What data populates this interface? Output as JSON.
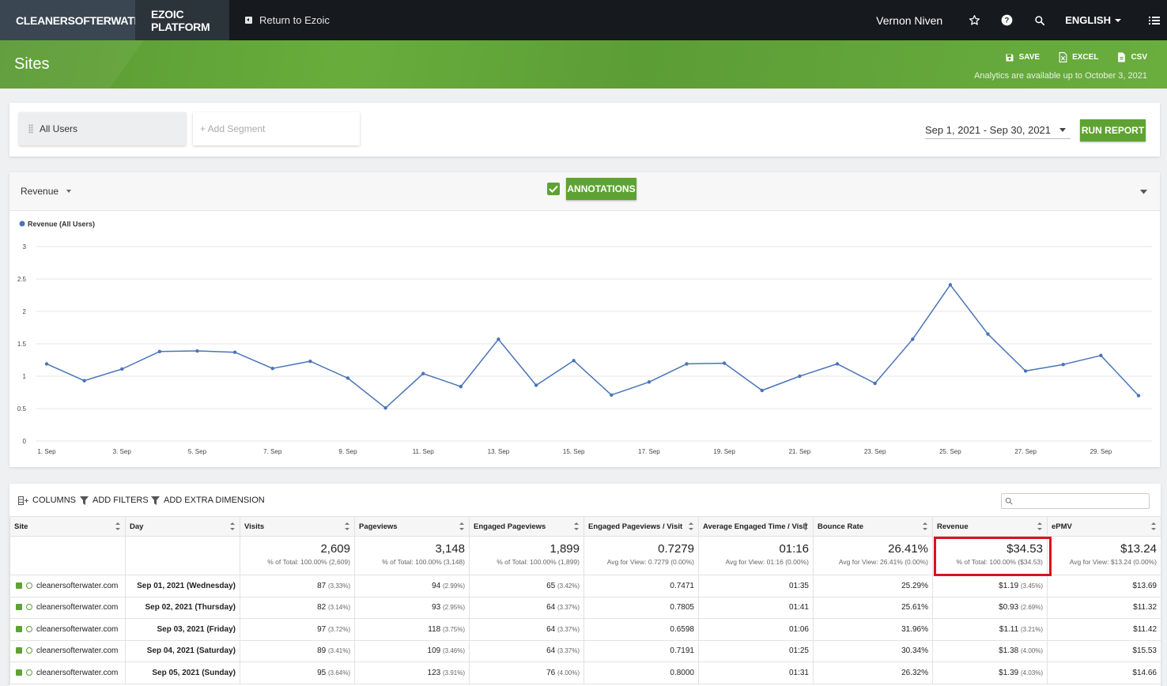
{
  "nav": {
    "site_name": "CLEANERSOFTERWATER.COM",
    "platform": "EZOIC PLATFORM",
    "return_label": "Return to Ezoic",
    "user": "Vernon Niven",
    "language": "ENGLISH"
  },
  "header": {
    "title": "Sites",
    "save": "SAVE",
    "excel": "EXCEL",
    "csv": "CSV",
    "note": "Analytics are available up to October 3, 2021"
  },
  "segments": {
    "all": "All Users",
    "add_placeholder": "+ Add Segment",
    "date_range": "Sep 1, 2021 - Sep 30, 2021",
    "run": "RUN REPORT"
  },
  "chart_controls": {
    "metric": "Revenue",
    "annotations": "ANNOTATIONS"
  },
  "chart_data": {
    "type": "line",
    "series": [
      {
        "name": "Revenue (All Users)",
        "color": "#4a74b8",
        "values": [
          1.19,
          0.93,
          1.11,
          1.38,
          1.39,
          1.37,
          1.12,
          1.23,
          0.97,
          0.51,
          1.04,
          0.84,
          1.57,
          0.86,
          1.24,
          0.71,
          0.91,
          1.19,
          1.2,
          0.78,
          1.0,
          1.19,
          0.89,
          1.57,
          2.41,
          1.65,
          1.08,
          1.18,
          1.32,
          0.7
        ]
      }
    ],
    "x": [
      "1. Sep",
      "2. Sep",
      "3. Sep",
      "4. Sep",
      "5. Sep",
      "6. Sep",
      "7. Sep",
      "8. Sep",
      "9. Sep",
      "10. Sep",
      "11. Sep",
      "12. Sep",
      "13. Sep",
      "14. Sep",
      "15. Sep",
      "16. Sep",
      "17. Sep",
      "18. Sep",
      "19. Sep",
      "20. Sep",
      "21. Sep",
      "22. Sep",
      "23. Sep",
      "24. Sep",
      "25. Sep",
      "26. Sep",
      "27. Sep",
      "28. Sep",
      "29. Sep",
      "30. Sep"
    ],
    "x_tick_labels": [
      "1. Sep",
      "3. Sep",
      "5. Sep",
      "7. Sep",
      "9. Sep",
      "11. Sep",
      "13. Sep",
      "15. Sep",
      "17. Sep",
      "19. Sep",
      "21. Sep",
      "23. Sep",
      "25. Sep",
      "27. Sep",
      "29. Sep"
    ],
    "y_ticks": [
      "0",
      "0.5",
      "1",
      "1.5",
      "2",
      "2.5",
      "3"
    ],
    "ylim": [
      0,
      3
    ],
    "grid": true,
    "legend": "top-left"
  },
  "table": {
    "tools": {
      "columns": "COLUMNS",
      "filters": "ADD FILTERS",
      "dimension": "ADD EXTRA DIMENSION"
    },
    "headers": [
      "Site",
      "Day",
      "Visits",
      "Pageviews",
      "Engaged Pageviews",
      "Engaged Pageviews / Visit",
      "Average Engaged Time / Visit",
      "Bounce Rate",
      "Revenue",
      "ePMV"
    ],
    "totals": [
      {
        "value": "2,609",
        "sub": "% of Total: 100.00% (2,609)"
      },
      {
        "value": "3,148",
        "sub": "% of Total: 100.00% (3,148)"
      },
      {
        "value": "1,899",
        "sub": "% of Total: 100.00% (1,899)"
      },
      {
        "value": "0.7279",
        "sub": "Avg for View: 0.7279 (0.00%)"
      },
      {
        "value": "01:16",
        "sub": "Avg for View: 01:16 (0.00%)"
      },
      {
        "value": "26.41%",
        "sub": "Avg for View: 26.41% (0.00%)"
      },
      {
        "value": "$34.53",
        "sub": "% of Total: 100.00% ($34.53)"
      },
      {
        "value": "$13.24",
        "sub": "Avg for View: $13.24 (0.00%)"
      }
    ],
    "rows": [
      {
        "site": "cleanersofterwater.com",
        "day": "Sep 01, 2021 (Wednesday)",
        "visits": "87",
        "visits_pct": "(3.33%)",
        "pageviews": "94",
        "pageviews_pct": "(2.99%)",
        "engaged": "65",
        "engaged_pct": "(3.42%)",
        "epv": "0.7471",
        "time": "01:35",
        "bounce": "25.29%",
        "revenue": "$1.19",
        "revenue_pct": "(3.45%)",
        "epmv": "$13.69"
      },
      {
        "site": "cleanersofterwater.com",
        "day": "Sep 02, 2021 (Thursday)",
        "visits": "82",
        "visits_pct": "(3.14%)",
        "pageviews": "93",
        "pageviews_pct": "(2.95%)",
        "engaged": "64",
        "engaged_pct": "(3.37%)",
        "epv": "0.7805",
        "time": "01:41",
        "bounce": "25.61%",
        "revenue": "$0.93",
        "revenue_pct": "(2.69%)",
        "epmv": "$11.32"
      },
      {
        "site": "cleanersofterwater.com",
        "day": "Sep 03, 2021 (Friday)",
        "visits": "97",
        "visits_pct": "(3.72%)",
        "pageviews": "118",
        "pageviews_pct": "(3.75%)",
        "engaged": "64",
        "engaged_pct": "(3.37%)",
        "epv": "0.6598",
        "time": "01:06",
        "bounce": "31.96%",
        "revenue": "$1.11",
        "revenue_pct": "(3.21%)",
        "epmv": "$11.42"
      },
      {
        "site": "cleanersofterwater.com",
        "day": "Sep 04, 2021 (Saturday)",
        "visits": "89",
        "visits_pct": "(3.41%)",
        "pageviews": "109",
        "pageviews_pct": "(3.46%)",
        "engaged": "64",
        "engaged_pct": "(3.37%)",
        "epv": "0.7191",
        "time": "01:25",
        "bounce": "30.34%",
        "revenue": "$1.38",
        "revenue_pct": "(4.00%)",
        "epmv": "$15.53"
      },
      {
        "site": "cleanersofterwater.com",
        "day": "Sep 05, 2021 (Sunday)",
        "visits": "95",
        "visits_pct": "(3.64%)",
        "pageviews": "123",
        "pageviews_pct": "(3.91%)",
        "engaged": "76",
        "engaged_pct": "(4.00%)",
        "epv": "0.8000",
        "time": "01:31",
        "bounce": "26.32%",
        "revenue": "$1.39",
        "revenue_pct": "(4.03%)",
        "epmv": "$14.66"
      }
    ]
  }
}
